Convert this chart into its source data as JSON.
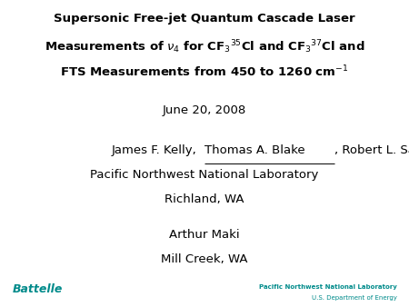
{
  "bg_color": "#ffffff",
  "title_line1": "Supersonic Free-jet Quantum Cascade Laser",
  "title_line2": "Measurements of $\\nu_4$ for CF$_3$$^{35}$Cl and CF$_3$$^{37}$Cl and",
  "title_line3": "FTS Measurements from 450 to 1260 cm$^{-1}$",
  "date": "June 20, 2008",
  "author_left": "James F. Kelly,  ",
  "author_underline": "Thomas A. Blake",
  "author_right": ", Robert L. Sams",
  "institution": "Pacific Northwest National Laboratory",
  "location": "Richland, WA",
  "author2": "Arthur Maki",
  "location2": "Mill Creek, WA",
  "battelle_color": "#008B8B",
  "pnnl_color": "#008B8B",
  "battelle_text": "Battelle",
  "pnnl_line1": "Pacific Northwest National Laboratory",
  "pnnl_line2": "U.S. Department of Energy",
  "title_fontsize": 9.5,
  "body_fontsize": 9.5,
  "footer_fontsize": 5.0
}
